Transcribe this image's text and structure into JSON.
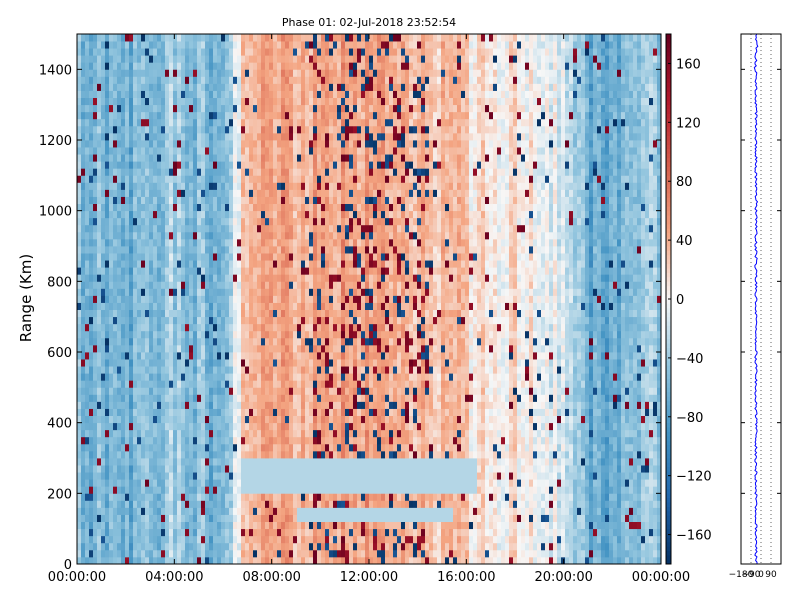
{
  "chart_data": [
    {
      "type": "heatmap",
      "title": "Phase 01: 02-Jul-2018 23:52:54",
      "xlabel": "",
      "ylabel": "Range (Km)",
      "x_range": [
        "00:00:00",
        "24:00:00"
      ],
      "y_range": [
        0,
        1500
      ],
      "x_ticks": [
        "00:00:00",
        "04:00:00",
        "08:00:00",
        "12:00:00",
        "16:00:00",
        "20:00:00",
        "00:00:00"
      ],
      "y_ticks": [
        0,
        200,
        400,
        600,
        800,
        1000,
        1200,
        1400
      ],
      "colorbar": {
        "colormap": "RdBu_r",
        "min": -180,
        "max": 180,
        "ticks": [
          "−160",
          "−120",
          "−80",
          "−40",
          "0",
          "40",
          "80",
          "120",
          "160"
        ],
        "tick_values": [
          -160,
          -120,
          -80,
          -40,
          0,
          40,
          80,
          120,
          160
        ]
      },
      "phase_profile_by_hour": [
        {
          "hour": 0,
          "phase": -45
        },
        {
          "hour": 1,
          "phase": -60
        },
        {
          "hour": 2,
          "phase": -70
        },
        {
          "hour": 3,
          "phase": -55
        },
        {
          "hour": 4,
          "phase": -40
        },
        {
          "hour": 5,
          "phase": -50
        },
        {
          "hour": 6,
          "phase": -75
        },
        {
          "hour": 7,
          "phase": 45
        },
        {
          "hour": 8,
          "phase": 40
        },
        {
          "hour": 9,
          "phase": 35
        },
        {
          "hour": 10,
          "phase": 40
        },
        {
          "hour": 11,
          "phase": 45
        },
        {
          "hour": 12,
          "phase": 50
        },
        {
          "hour": 13,
          "phase": 45
        },
        {
          "hour": 14,
          "phase": 40
        },
        {
          "hour": 15,
          "phase": 30
        },
        {
          "hour": 16,
          "phase": 20
        },
        {
          "hour": 17,
          "phase": 15
        },
        {
          "hour": 18,
          "phase": 10
        },
        {
          "hour": 19,
          "phase": 5
        },
        {
          "hour": 20,
          "phase": -10
        },
        {
          "hour": 21,
          "phase": -70
        },
        {
          "hour": 22,
          "phase": -80
        },
        {
          "hour": 23,
          "phase": -50
        }
      ],
      "features": [
        {
          "description": "light blue band",
          "range_km": [
            210,
            290
          ],
          "hours": [
            6.7,
            16.5
          ]
        },
        {
          "description": "light blue band",
          "range_km": [
            120,
            150
          ],
          "hours": [
            9.0,
            15.5
          ]
        }
      ]
    },
    {
      "type": "line",
      "title": "",
      "x_ticks": [
        "−180",
        "−90",
        "0",
        "90"
      ],
      "x_tick_values": [
        -180,
        -90,
        0,
        90
      ],
      "xlim": [
        -180,
        180
      ],
      "ylim": [
        0,
        1500
      ],
      "series_color": "#0000ff",
      "mean_phase": -45,
      "spread": 10
    }
  ]
}
